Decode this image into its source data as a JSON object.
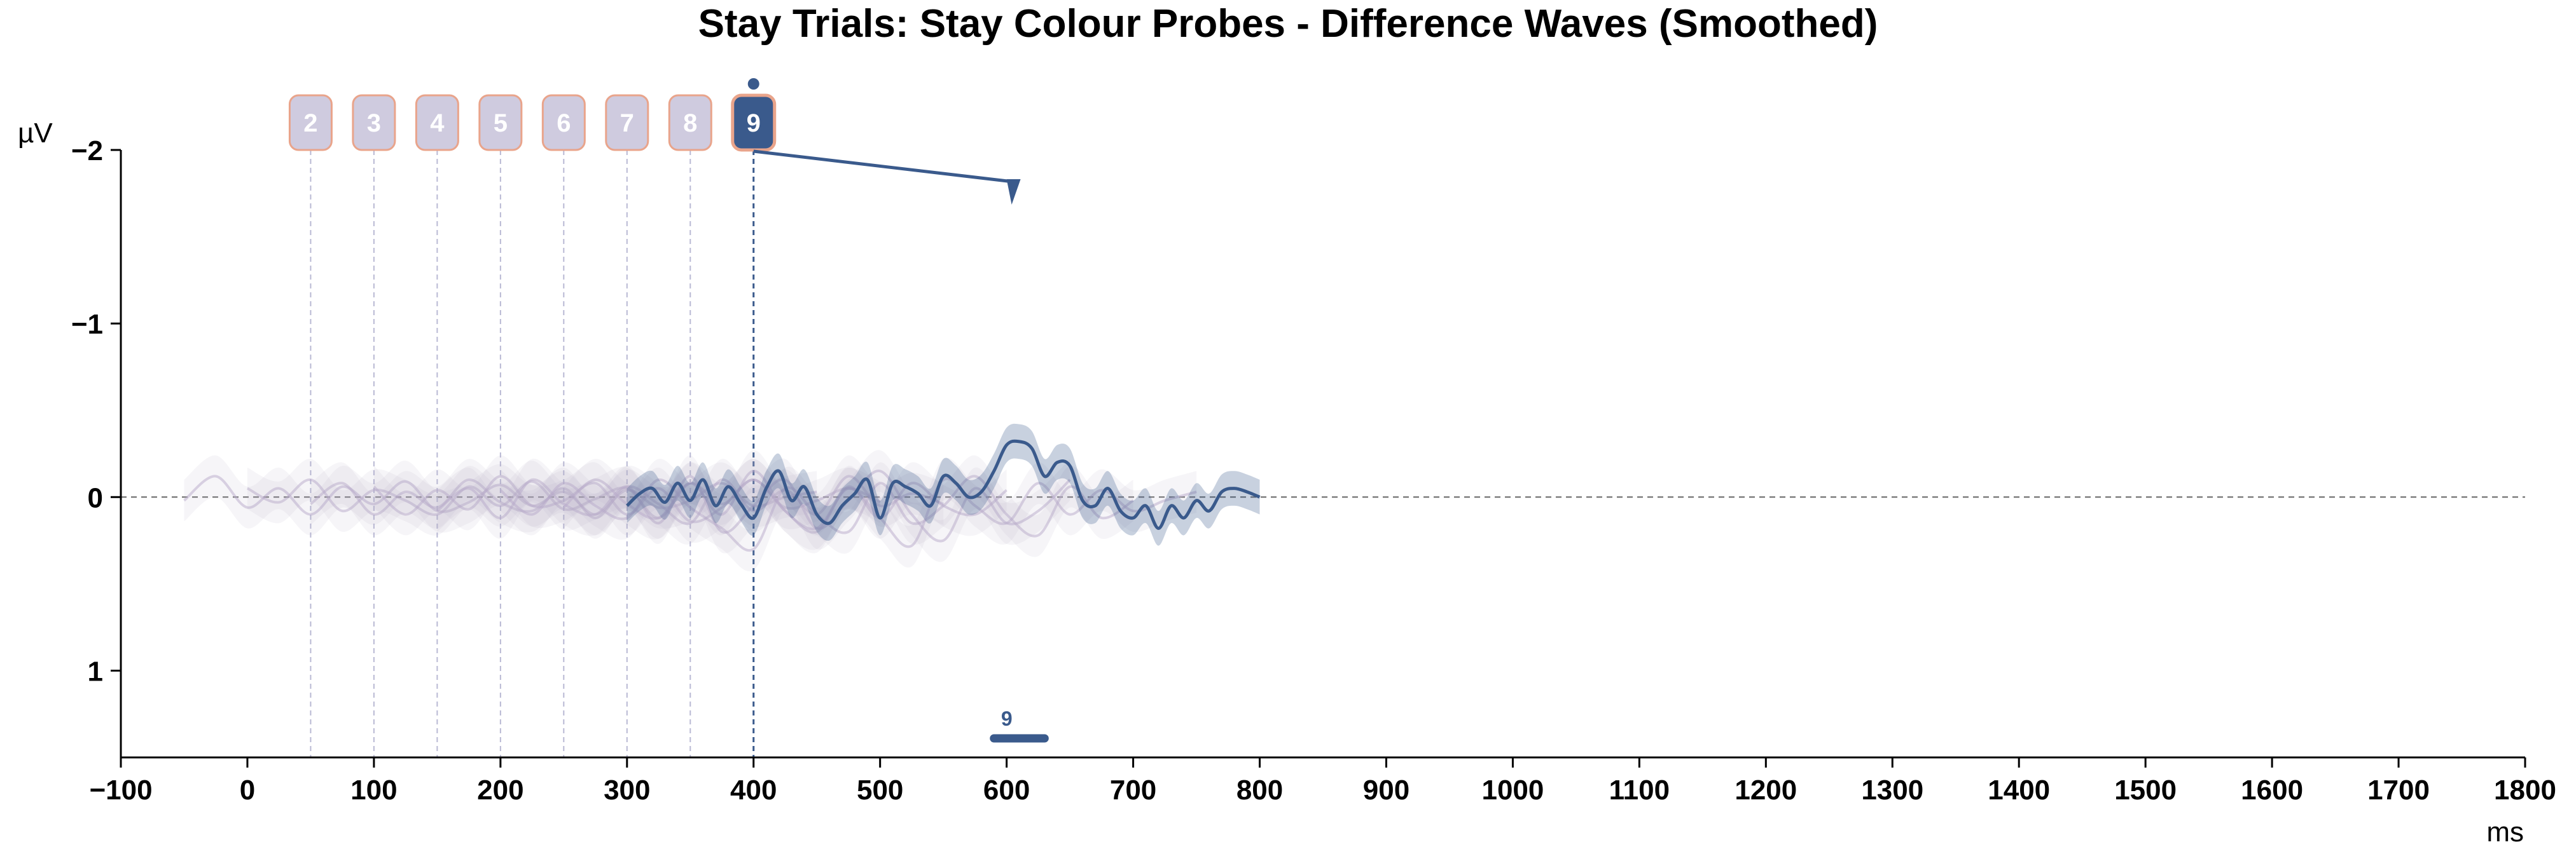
{
  "chart_data": {
    "type": "line",
    "title": "Stay Trials: Stay Colour Probes - Difference Waves (Smoothed)",
    "xlabel": "ms",
    "ylabel": "µV",
    "xlim": [
      -100,
      1800
    ],
    "ylim": [
      -2,
      1.5
    ],
    "y_inverted": true,
    "xticks": [
      -100,
      0,
      100,
      200,
      300,
      400,
      500,
      600,
      700,
      800,
      900,
      1000,
      1100,
      1200,
      1300,
      1400,
      1500,
      1600,
      1700,
      1800
    ],
    "yticks": [
      -2,
      -1,
      0,
      1
    ],
    "ytick_labels": [
      "−2",
      "−1",
      "0",
      "1"
    ],
    "xtick_labels": [
      "−100",
      "0",
      "100",
      "200",
      "300",
      "400",
      "500",
      "600",
      "700",
      "800",
      "900",
      "1000",
      "1100",
      "1200",
      "1300",
      "1400",
      "1500",
      "1600",
      "1700",
      "1800"
    ],
    "probes": [
      {
        "label": "2",
        "onset": 50,
        "active": false
      },
      {
        "label": "3",
        "onset": 100,
        "active": false
      },
      {
        "label": "4",
        "onset": 150,
        "active": false
      },
      {
        "label": "5",
        "onset": 200,
        "active": false
      },
      {
        "label": "6",
        "onset": 250,
        "active": false
      },
      {
        "label": "7",
        "onset": 300,
        "active": false
      },
      {
        "label": "8",
        "onset": 350,
        "active": false
      },
      {
        "label": "9",
        "onset": 400,
        "active": true
      }
    ],
    "series": [
      {
        "probe": "2",
        "x": [
          -50,
          -25,
          0,
          25,
          50,
          75,
          100,
          125,
          150,
          175,
          200,
          225,
          250,
          275,
          300,
          325,
          350,
          375,
          400,
          425,
          450
        ],
        "y": [
          0.02,
          -0.12,
          0.06,
          -0.05,
          0.1,
          -0.06,
          0.04,
          -0.09,
          0.08,
          0.03,
          -0.07,
          0.05,
          -0.03,
          0.1,
          -0.04,
          0.06,
          0.02,
          -0.08,
          0.05,
          0.0,
          -0.03
        ]
      },
      {
        "probe": "3",
        "x": [
          0,
          25,
          50,
          75,
          100,
          125,
          150,
          175,
          200,
          225,
          250,
          275,
          300,
          325,
          350,
          375,
          400,
          425,
          450,
          475,
          500
        ],
        "y": [
          -0.05,
          0.03,
          -0.1,
          0.08,
          -0.04,
          0.02,
          0.1,
          -0.06,
          0.05,
          -0.09,
          0.07,
          0.01,
          -0.05,
          0.12,
          -0.08,
          0.04,
          -0.1,
          0.06,
          0.02,
          -0.05,
          0.03
        ]
      },
      {
        "probe": "4",
        "x": [
          50,
          75,
          100,
          125,
          150,
          175,
          200,
          225,
          250,
          275,
          300,
          325,
          350,
          375,
          400,
          425,
          450,
          475,
          500,
          525,
          550
        ],
        "y": [
          0.04,
          -0.08,
          0.1,
          -0.03,
          0.06,
          -0.1,
          0.03,
          0.08,
          -0.05,
          0.12,
          -0.06,
          0.04,
          0.15,
          -0.1,
          0.08,
          -0.04,
          0.1,
          -0.12,
          0.05,
          -0.02,
          0.04
        ]
      },
      {
        "probe": "5",
        "x": [
          100,
          125,
          150,
          175,
          200,
          225,
          250,
          275,
          300,
          325,
          350,
          375,
          400,
          425,
          450,
          475,
          500,
          525,
          550,
          575,
          600
        ],
        "y": [
          -0.06,
          0.1,
          -0.04,
          0.07,
          -0.12,
          0.05,
          0.02,
          -0.08,
          0.1,
          -0.05,
          0.14,
          0.06,
          -0.1,
          0.08,
          0.2,
          -0.06,
          0.12,
          -0.08,
          0.05,
          0.1,
          -0.04
        ]
      },
      {
        "probe": "6",
        "x": [
          150,
          175,
          200,
          225,
          250,
          275,
          300,
          325,
          350,
          375,
          400,
          425,
          450,
          475,
          500,
          525,
          550,
          575,
          600,
          625,
          650
        ],
        "y": [
          0.08,
          -0.05,
          0.12,
          -0.1,
          0.04,
          0.1,
          -0.06,
          0.15,
          -0.12,
          0.2,
          0.05,
          -0.1,
          0.18,
          0.02,
          -0.15,
          0.1,
          0.25,
          -0.05,
          0.15,
          0.08,
          -0.1
        ]
      },
      {
        "probe": "7",
        "x": [
          200,
          225,
          250,
          275,
          300,
          325,
          350,
          375,
          400,
          425,
          450,
          475,
          500,
          525,
          550,
          575,
          600,
          625,
          650,
          675,
          700
        ],
        "y": [
          -0.04,
          0.1,
          -0.08,
          0.05,
          0.12,
          -0.1,
          0.06,
          0.18,
          0.3,
          -0.05,
          0.1,
          0.2,
          -0.08,
          0.15,
          0.05,
          -0.12,
          0.1,
          0.22,
          -0.06,
          0.12,
          0.02
        ]
      },
      {
        "probe": "8",
        "x": [
          250,
          275,
          300,
          325,
          350,
          375,
          400,
          425,
          450,
          475,
          500,
          525,
          550,
          575,
          600,
          625,
          650,
          675,
          700,
          725,
          750
        ],
        "y": [
          0.06,
          -0.1,
          0.04,
          0.12,
          -0.08,
          0.1,
          -0.15,
          0.08,
          0.18,
          -0.05,
          0.12,
          0.28,
          -0.1,
          0.05,
          0.15,
          -0.08,
          0.1,
          -0.04,
          0.08,
          0.02,
          -0.03
        ]
      },
      {
        "probe": "9",
        "x": [
          300,
          310,
          320,
          330,
          340,
          350,
          360,
          370,
          380,
          390,
          400,
          410,
          420,
          430,
          440,
          450,
          460,
          470,
          480,
          490,
          500,
          510,
          520,
          530,
          540,
          550,
          560,
          570,
          580,
          590,
          600,
          610,
          620,
          630,
          640,
          650,
          660,
          670,
          680,
          690,
          700,
          710,
          720,
          730,
          740,
          750,
          760,
          770,
          780,
          790,
          800
        ],
        "y": [
          0.05,
          -0.02,
          -0.05,
          0.03,
          -0.08,
          0.02,
          -0.1,
          0.05,
          -0.06,
          0.04,
          0.12,
          -0.05,
          -0.15,
          0.02,
          -0.06,
          0.1,
          0.15,
          0.05,
          -0.02,
          -0.1,
          0.12,
          -0.08,
          -0.06,
          -0.02,
          0.05,
          -0.12,
          -0.08,
          0.0,
          -0.03,
          -0.15,
          -0.3,
          -0.32,
          -0.28,
          -0.12,
          -0.2,
          -0.18,
          0.02,
          0.05,
          -0.05,
          0.08,
          0.12,
          0.05,
          0.18,
          0.05,
          0.12,
          0.02,
          0.08,
          -0.03,
          -0.05,
          -0.03,
          0.0
        ]
      }
    ],
    "significance": [
      {
        "label": "9",
        "x": [
          590,
          630
        ]
      }
    ],
    "colors": {
      "active": "#3a5a8c",
      "inactive": "#b7a9c9",
      "probe_box_inactive": "#cfcbdf",
      "probe_box_border": "#e9a48b"
    }
  }
}
